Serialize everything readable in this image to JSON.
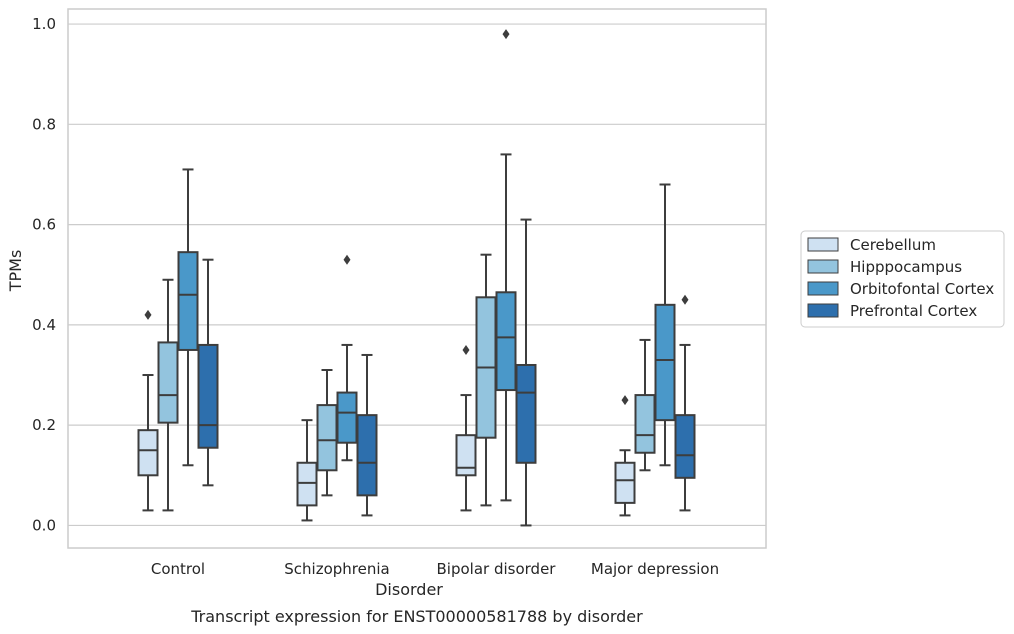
{
  "chart_data": {
    "type": "box",
    "title": "",
    "caption": "Transcript expression for ENST00000581788 by disorder",
    "xlabel": "Disorder",
    "ylabel": "TPMs",
    "ylim": [
      -0.045,
      1.03
    ],
    "yticks": [
      0.0,
      0.2,
      0.4,
      0.6,
      0.8,
      1.0
    ],
    "ytick_labels": [
      "0.0",
      "0.2",
      "0.4",
      "0.6",
      "0.8",
      "1.0"
    ],
    "grid": "horizontal",
    "legend_position": "right",
    "categories": [
      "Control",
      "Schizophrenia",
      "Bipolar disorder",
      "Major depression"
    ],
    "series": [
      {
        "name": "Cerebellum",
        "color": "#cfe1f2",
        "boxes": [
          {
            "whisker_low": 0.03,
            "q1": 0.1,
            "median": 0.15,
            "q3": 0.19,
            "whisker_high": 0.3,
            "outliers": [
              0.42
            ]
          },
          {
            "whisker_low": 0.01,
            "q1": 0.04,
            "median": 0.085,
            "q3": 0.125,
            "whisker_high": 0.21,
            "outliers": []
          },
          {
            "whisker_low": 0.03,
            "q1": 0.1,
            "median": 0.115,
            "q3": 0.18,
            "whisker_high": 0.26,
            "outliers": [
              0.35
            ]
          },
          {
            "whisker_low": 0.02,
            "q1": 0.045,
            "median": 0.09,
            "q3": 0.125,
            "whisker_high": 0.15,
            "outliers": [
              0.25
            ]
          }
        ]
      },
      {
        "name": "Hipppocampus",
        "color": "#93c4de",
        "boxes": [
          {
            "whisker_low": 0.03,
            "q1": 0.205,
            "median": 0.26,
            "q3": 0.365,
            "whisker_high": 0.49,
            "outliers": []
          },
          {
            "whisker_low": 0.06,
            "q1": 0.11,
            "median": 0.17,
            "q3": 0.24,
            "whisker_high": 0.31,
            "outliers": []
          },
          {
            "whisker_low": 0.04,
            "q1": 0.175,
            "median": 0.315,
            "q3": 0.455,
            "whisker_high": 0.54,
            "outliers": []
          },
          {
            "whisker_low": 0.11,
            "q1": 0.145,
            "median": 0.18,
            "q3": 0.26,
            "whisker_high": 0.37,
            "outliers": []
          }
        ]
      },
      {
        "name": "Orbitofontal Cortex",
        "color": "#4a98c9",
        "boxes": [
          {
            "whisker_low": 0.12,
            "q1": 0.35,
            "median": 0.46,
            "q3": 0.545,
            "whisker_high": 0.71,
            "outliers": []
          },
          {
            "whisker_low": 0.13,
            "q1": 0.165,
            "median": 0.225,
            "q3": 0.265,
            "whisker_high": 0.36,
            "outliers": [
              0.53
            ]
          },
          {
            "whisker_low": 0.05,
            "q1": 0.27,
            "median": 0.375,
            "q3": 0.465,
            "whisker_high": 0.74,
            "outliers": [
              0.98
            ]
          },
          {
            "whisker_low": 0.12,
            "q1": 0.21,
            "median": 0.33,
            "q3": 0.44,
            "whisker_high": 0.68,
            "outliers": []
          }
        ]
      },
      {
        "name": "Prefrontal Cortex",
        "color": "#2d6fad",
        "boxes": [
          {
            "whisker_low": 0.08,
            "q1": 0.155,
            "median": 0.2,
            "q3": 0.36,
            "whisker_high": 0.53,
            "outliers": []
          },
          {
            "whisker_low": 0.02,
            "q1": 0.06,
            "median": 0.125,
            "q3": 0.22,
            "whisker_high": 0.34,
            "outliers": []
          },
          {
            "whisker_low": 0.0,
            "q1": 0.125,
            "median": 0.265,
            "q3": 0.32,
            "whisker_high": 0.61,
            "outliers": []
          },
          {
            "whisker_low": 0.03,
            "q1": 0.095,
            "median": 0.14,
            "q3": 0.22,
            "whisker_high": 0.36,
            "outliers": [
              0.45
            ]
          }
        ]
      }
    ]
  }
}
